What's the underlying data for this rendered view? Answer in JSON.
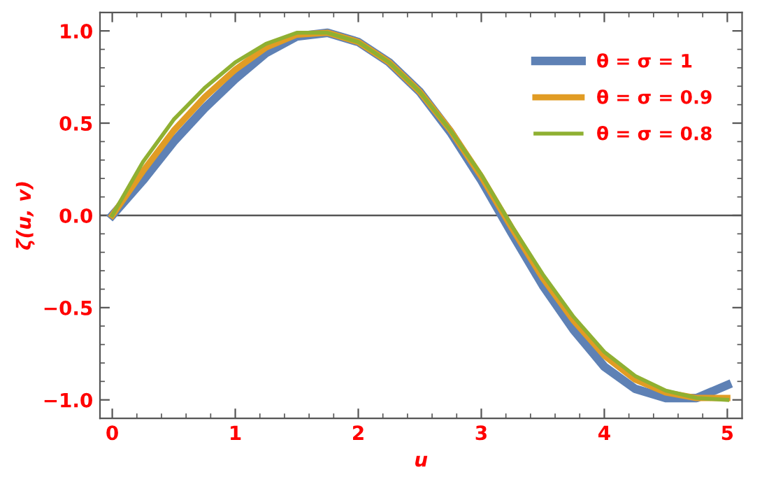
{
  "chart_data": {
    "type": "line",
    "xlabel": "u",
    "ylabel": "ζ(u, v)",
    "x": [
      0,
      0.25,
      0.5,
      0.75,
      1.0,
      1.25,
      1.5,
      1.75,
      2.0,
      2.25,
      2.5,
      2.75,
      3.0,
      3.25,
      3.5,
      3.75,
      4.0,
      4.25,
      4.5,
      4.75,
      5.0
    ],
    "series": [
      {
        "name": "θ = σ = 1",
        "color": "#5e81b5",
        "values": [
          0,
          0.19,
          0.4,
          0.58,
          0.74,
          0.88,
          0.97,
          0.99,
          0.94,
          0.83,
          0.67,
          0.45,
          0.19,
          -0.1,
          -0.38,
          -0.62,
          -0.82,
          -0.94,
          -0.99,
          -0.99,
          -0.92
        ]
      },
      {
        "name": "θ = σ = 0.9",
        "color": "#e19c24",
        "values": [
          0,
          0.24,
          0.46,
          0.64,
          0.79,
          0.91,
          0.98,
          0.99,
          0.94,
          0.83,
          0.67,
          0.46,
          0.21,
          -0.07,
          -0.34,
          -0.57,
          -0.76,
          -0.89,
          -0.96,
          -0.99,
          -0.99
        ]
      },
      {
        "name": "θ = σ = 0.8",
        "color": "#8fb032",
        "values": [
          0,
          0.29,
          0.52,
          0.69,
          0.83,
          0.93,
          0.99,
          0.99,
          0.94,
          0.83,
          0.67,
          0.46,
          0.22,
          -0.06,
          -0.32,
          -0.55,
          -0.74,
          -0.87,
          -0.95,
          -0.99,
          -1.0
        ]
      }
    ],
    "xlim": [
      -0.1,
      5.12
    ],
    "ylim": [
      -1.1,
      1.1
    ],
    "xticks": [
      0,
      1,
      2,
      3,
      4,
      5
    ],
    "yticks": [
      {
        "value": -1.0,
        "label": "−1.0"
      },
      {
        "value": -0.5,
        "label": "−0.5"
      },
      {
        "value": 0.0,
        "label": "0.0"
      },
      {
        "value": 0.5,
        "label": "0.5"
      },
      {
        "value": 1.0,
        "label": "1.0"
      }
    ],
    "ref_lines": [
      {
        "axis": "y",
        "value": 0,
        "color": "#555555"
      }
    ],
    "legend": "top right",
    "grid": false,
    "marker": "none",
    "line_style": "solid"
  }
}
